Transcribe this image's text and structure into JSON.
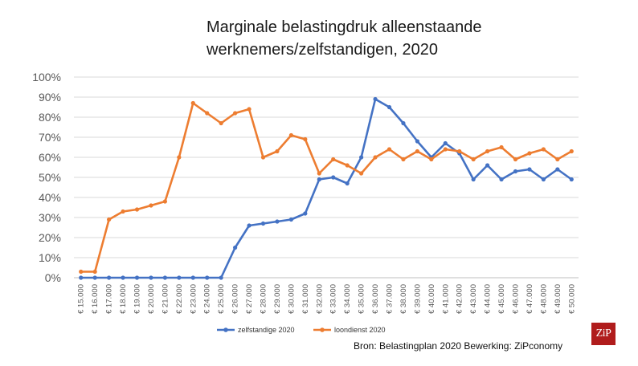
{
  "chart_data": {
    "type": "line",
    "title_line1": "Marginale belastingdruk alleenstaande",
    "title_line2": "werknemers/zelfstandigen, 2020",
    "categories": [
      "€ 15.000",
      "€ 16.000",
      "€ 17.000",
      "€ 18.000",
      "€ 19.000",
      "€ 20.000",
      "€ 21.000",
      "€ 22.000",
      "€ 23.000",
      "€ 24.000",
      "€ 25.000",
      "€ 26.000",
      "€ 27.000",
      "€ 28.000",
      "€ 29.000",
      "€ 30.000",
      "€ 31.000",
      "€ 32.000",
      "€ 33.000",
      "€ 34.000",
      "€ 35.000",
      "€ 36.000",
      "€ 37.000",
      "€ 38.000",
      "€ 39.000",
      "€ 40.000",
      "€ 41.000",
      "€ 42.000",
      "€ 43.000",
      "€ 44.000",
      "€ 45.000",
      "€ 46.000",
      "€ 47.000",
      "€ 48.000",
      "€ 49.000",
      "€ 50.000"
    ],
    "y_ticks": [
      "0%",
      "10%",
      "20%",
      "30%",
      "40%",
      "50%",
      "60%",
      "70%",
      "80%",
      "90%",
      "100%"
    ],
    "ylim": [
      0,
      100
    ],
    "grid": true,
    "legend_position": "bottom",
    "series": [
      {
        "name": "zelfstandige 2020",
        "color": "#4472c4",
        "values": [
          0,
          0,
          0,
          0,
          0,
          0,
          0,
          0,
          0,
          0,
          0,
          15,
          26,
          27,
          28,
          29,
          32,
          49,
          50,
          47,
          60,
          89,
          85,
          77,
          68,
          60,
          67,
          62,
          49,
          56,
          49,
          53,
          54,
          49,
          54,
          49
        ]
      },
      {
        "name": "loondienst 2020",
        "color": "#ed7d31",
        "values": [
          3,
          3,
          29,
          33,
          34,
          36,
          38,
          60,
          87,
          82,
          77,
          82,
          84,
          60,
          63,
          71,
          69,
          52,
          59,
          56,
          52,
          60,
          64,
          59,
          63,
          59,
          64,
          63,
          59,
          63,
          65,
          59,
          62,
          64,
          59,
          63
        ]
      }
    ]
  },
  "source_text": "Bron: Belastingplan 2020 Bewerking: ZiPconomy",
  "logo_text": "ZiP"
}
